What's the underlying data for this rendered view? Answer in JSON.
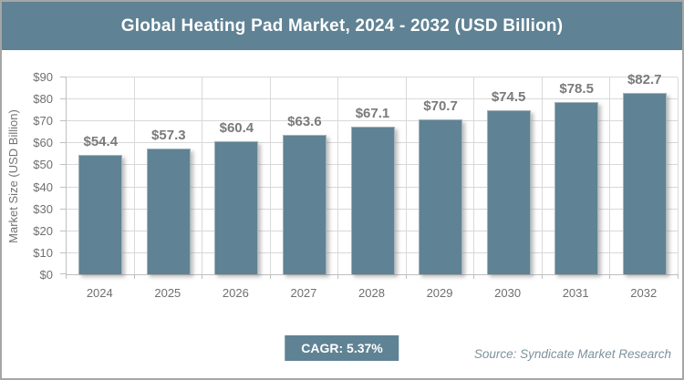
{
  "title": "Global Heating Pad Market, 2024 - 2032 (USD Billion)",
  "chart_data": {
    "type": "bar",
    "title": "Global Heating Pad Market, 2024 - 2032 (USD Billion)",
    "categories": [
      "2024",
      "2025",
      "2026",
      "2027",
      "2028",
      "2029",
      "2030",
      "2031",
      "2032"
    ],
    "values": [
      54.4,
      57.3,
      60.4,
      63.6,
      67.1,
      70.7,
      74.5,
      78.5,
      82.7
    ],
    "value_prefix": "$",
    "value_decimals": 1,
    "xlabel": "",
    "ylabel": "Market Size (USD Billion)",
    "ylim": [
      0,
      90
    ],
    "ytick_step": 10,
    "grid": true,
    "legend": false,
    "bar_color": "#5f8294"
  },
  "footer": {
    "cagr_label": "CAGR: 5.37%",
    "source_label": "Source: Syndicate Market Research"
  },
  "colors": {
    "accent": "#5f8294",
    "title_text": "#ffffff",
    "value_label": "#7a7a7a",
    "tick_label": "#6f6f6f",
    "gridline": "#d9d9d9",
    "axis_line": "#bfbfbf",
    "frame_border": "#a6a6a6",
    "source_text": "#7d929d"
  }
}
